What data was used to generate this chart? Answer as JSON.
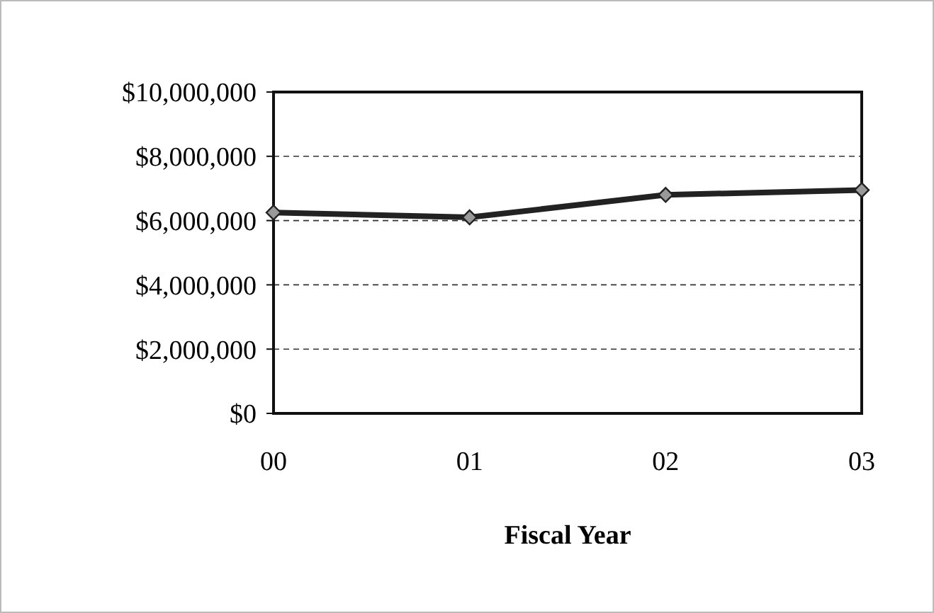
{
  "chart_data": {
    "type": "line",
    "xlabel": "Fiscal Year",
    "categories": [
      "00",
      "01",
      "02",
      "03"
    ],
    "series": [
      {
        "color": "#222222",
        "values": [
          6250000,
          6100000,
          6800000,
          6950000
        ]
      }
    ],
    "ylim": [
      0,
      10000000
    ],
    "yticks": [
      {
        "value": 0,
        "label": "$0"
      },
      {
        "value": 2000000,
        "label": "$2,000,000"
      },
      {
        "value": 4000000,
        "label": "$4,000,000"
      },
      {
        "value": 6000000,
        "label": "$6,000,000"
      },
      {
        "value": 8000000,
        "label": "$8,000,000"
      },
      {
        "value": 10000000,
        "label": "$10,000,000"
      }
    ],
    "grid": "y",
    "marker": "diamond",
    "line_style": "solid"
  }
}
